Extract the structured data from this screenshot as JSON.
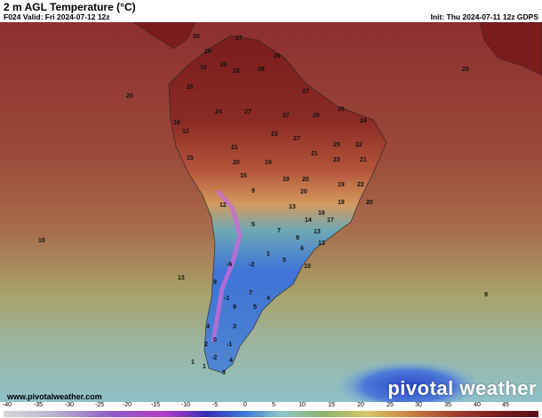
{
  "header": {
    "title": "2 m AGL Temperature (°C)",
    "valid": "F024 Valid: Fri 2024-07-12 12z",
    "init": "Init: Thu 2024-07-11 12z GDPS"
  },
  "map": {
    "region": "South America",
    "ocean_color": "#9a4a3a",
    "labels": [
      {
        "text": "20"
      },
      {
        "text": "18"
      },
      {
        "text": "13"
      },
      {
        "text": "9"
      },
      {
        "text": "28"
      },
      {
        "text": "27"
      },
      {
        "text": "29"
      },
      {
        "text": "28"
      },
      {
        "text": "28"
      },
      {
        "text": "26"
      },
      {
        "text": "28"
      },
      {
        "text": "10"
      },
      {
        "text": "26"
      },
      {
        "text": "27"
      },
      {
        "text": "16"
      },
      {
        "text": "12"
      },
      {
        "text": "24"
      },
      {
        "text": "27"
      },
      {
        "text": "27"
      },
      {
        "text": "26"
      },
      {
        "text": "26"
      },
      {
        "text": "24"
      },
      {
        "text": "21"
      },
      {
        "text": "23"
      },
      {
        "text": "27"
      },
      {
        "text": "25"
      },
      {
        "text": "21"
      },
      {
        "text": "22"
      },
      {
        "text": "19"
      },
      {
        "text": "20"
      },
      {
        "text": "23"
      },
      {
        "text": "21"
      },
      {
        "text": "15"
      },
      {
        "text": "15"
      },
      {
        "text": "19"
      },
      {
        "text": "20"
      },
      {
        "text": "19"
      },
      {
        "text": "22"
      },
      {
        "text": "9"
      },
      {
        "text": "20"
      },
      {
        "text": "19"
      },
      {
        "text": "20"
      },
      {
        "text": "12"
      },
      {
        "text": "13"
      },
      {
        "text": "16"
      },
      {
        "text": "17"
      },
      {
        "text": "14"
      },
      {
        "text": "5"
      },
      {
        "text": "7"
      },
      {
        "text": "13"
      },
      {
        "text": "8"
      },
      {
        "text": "13"
      },
      {
        "text": "-6"
      },
      {
        "text": "-2"
      },
      {
        "text": "1"
      },
      {
        "text": "5"
      },
      {
        "text": "6"
      },
      {
        "text": "10"
      },
      {
        "text": "9"
      },
      {
        "text": "7"
      },
      {
        "text": "-1"
      },
      {
        "text": "4"
      },
      {
        "text": "9"
      },
      {
        "text": "5"
      },
      {
        "text": "4"
      },
      {
        "text": "3"
      },
      {
        "text": "0"
      },
      {
        "text": "-1"
      },
      {
        "text": "2"
      },
      {
        "text": "-2"
      },
      {
        "text": "4"
      },
      {
        "text": "1"
      },
      {
        "text": "3"
      },
      {
        "text": "1"
      },
      {
        "text": "20"
      }
    ]
  },
  "footer": {
    "url": "www.pivotalweather.com",
    "logo": "pivotal weather"
  },
  "colorbar": {
    "unit": "°C",
    "ticks": [
      "-40",
      "-35",
      "-30",
      "-25",
      "-20",
      "-15",
      "-10",
      "-5",
      "0",
      "5",
      "10",
      "15",
      "20",
      "25",
      "30",
      "35",
      "40",
      "45"
    ]
  }
}
